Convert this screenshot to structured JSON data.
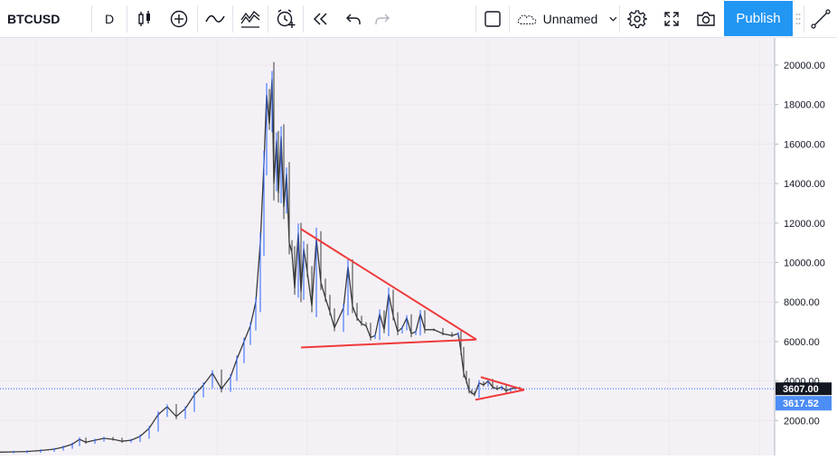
{
  "toolbar": {
    "symbol": "BTCUSD",
    "interval": "D",
    "layout_name": "Unnamed",
    "publish_label": "Publish",
    "icons": [
      "bar-style-icon",
      "add-indicator-icon",
      "indicators-icon",
      "compare-icon",
      "alert-icon",
      "replay-icon",
      "undo-icon",
      "redo-icon",
      "square-icon",
      "cloud-icon",
      "chevron-down-icon",
      "settings-icon",
      "fullscreen-icon",
      "camera-icon",
      "drag-handle-icon",
      "trendline-icon"
    ]
  },
  "colors": {
    "candle": "#3a3a3a",
    "candle_up": "#2962ff",
    "trendline": "#ef3a3a",
    "price_line": "#2962ff",
    "last_price_bg": "#131722",
    "crosshair_bg": "#4c8df6",
    "plot_bg": "#f4f1f6",
    "publish": "#2196f3"
  },
  "chart_data": {
    "type": "line",
    "symbol": "BTCUSD",
    "interval": "D",
    "ylim": [
      0,
      20800
    ],
    "yticks": [
      2000,
      4000,
      6000,
      8000,
      10000,
      12000,
      14000,
      16000,
      18000,
      20000
    ],
    "ytick_labels": [
      "2000.00",
      "4000.00",
      "6000.00",
      "8000.00",
      "10000.00",
      "12000.00",
      "14000.00",
      "16000.00",
      "18000.00",
      "20000.00"
    ],
    "series": [
      {
        "x": [
          0,
          15,
          30,
          45,
          60,
          70,
          80,
          88,
          95,
          105,
          115,
          125,
          135,
          145,
          155,
          165,
          175,
          185,
          195,
          205,
          215,
          225,
          235,
          245,
          255,
          262,
          270,
          277,
          283,
          288,
          292,
          295,
          298,
          301,
          303,
          306,
          308,
          311,
          314,
          317,
          320,
          323,
          326,
          330,
          333,
          336,
          340,
          345,
          350,
          355,
          360,
          365,
          370,
          380,
          385,
          390,
          395,
          400,
          405,
          410,
          415,
          420,
          425,
          430,
          435,
          440,
          445,
          450,
          455,
          460,
          465,
          470,
          480,
          490,
          500,
          507,
          510,
          513,
          516,
          519,
          522,
          525,
          530,
          535,
          540,
          545,
          550,
          555,
          560,
          565,
          570,
          575
        ],
        "values": [
          400,
          410,
          430,
          480,
          550,
          650,
          800,
          1050,
          900,
          1000,
          1100,
          1050,
          950,
          1000,
          1200,
          1600,
          2300,
          2700,
          2200,
          2600,
          3300,
          3800,
          4400,
          3600,
          4200,
          5100,
          6000,
          6800,
          8000,
          11000,
          15000,
          18500,
          17000,
          19300,
          14000,
          16200,
          13500,
          16400,
          12800,
          14500,
          11000,
          10500,
          8700,
          11500,
          8500,
          10700,
          9500,
          7800,
          11200,
          9000,
          8200,
          7500,
          6700,
          7700,
          9800,
          7800,
          7200,
          6900,
          6800,
          6200,
          6300,
          7400,
          6600,
          8400,
          7300,
          6500,
          6700,
          7200,
          6400,
          6500,
          7400,
          6600,
          6600,
          6400,
          6300,
          6400,
          5500,
          4400,
          4000,
          3500,
          3400,
          3300,
          3900,
          3800,
          4000,
          3700,
          3600,
          3700,
          3500,
          3600,
          3650,
          3617.52
        ]
      }
    ],
    "last_price": 3607.0,
    "last_price_label": "3607.00",
    "crosshair_price_label": "3617.52",
    "annotations": [
      {
        "type": "trendline",
        "from": [
          333,
          11700
        ],
        "to": [
          527,
          6100
        ]
      },
      {
        "type": "trendline",
        "from": [
          333,
          5700
        ],
        "to": [
          527,
          6100
        ]
      },
      {
        "type": "trendline",
        "from": [
          532,
          4200
        ],
        "to": [
          580,
          3550
        ]
      },
      {
        "type": "trendline",
        "from": [
          526,
          3050
        ],
        "to": [
          580,
          3550
        ]
      }
    ],
    "grid": true,
    "legend": "none"
  }
}
